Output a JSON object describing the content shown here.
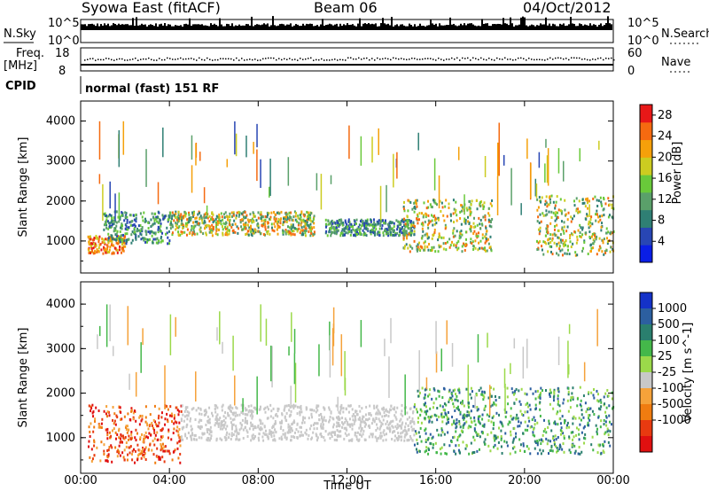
{
  "header": {
    "station": "Syowa East (fitACF)",
    "beam": "Beam 06",
    "date": "04/Oct/2012"
  },
  "side_labels": {
    "nsky": "N.Sky",
    "freq_line1": "Freq.",
    "freq_line2": "[MHz]",
    "cpid": "CPID",
    "nsearch": "N.Search",
    "nave": "Nave"
  },
  "small_axes": {
    "nsky_top": "10^5",
    "nsky_bottom": "10^0",
    "nsearch_top": "10^5",
    "nsearch_bottom": "10^0",
    "freq_top": "18",
    "freq_bottom": "8",
    "nave_top": "60",
    "nave_bottom": "0"
  },
  "cpid_text": "normal (fast) 151 RF",
  "colors": {
    "power_scale": [
      "#0a1ee6",
      "#2846b4",
      "#2f7f74",
      "#5aa06a",
      "#69c93a",
      "#cccc20",
      "#f5a00a",
      "#f56a10",
      "#e81818"
    ],
    "velocity_scale": [
      "#1432c8",
      "#2c5fa0",
      "#2a7f6e",
      "#44b84a",
      "#9bd94a",
      "#c8c8c8",
      "#f5a23a",
      "#f07c10",
      "#e83a10",
      "#e01010"
    ]
  },
  "chart_data": [
    {
      "type": "heatmap",
      "title": "",
      "ylabel": "Slant Range [km]",
      "ylim": [
        200,
        4500
      ],
      "yticks": [
        "1000",
        "2000",
        "3000",
        "4000"
      ],
      "colorbar": {
        "label": "Power [dB]",
        "ticks": [
          "4",
          "8",
          "12",
          "16",
          "20",
          "24",
          "28"
        ],
        "range": [
          0,
          30
        ]
      },
      "regions": [
        {
          "t": [
            0.3,
            2.0
          ],
          "r": [
            650,
            1100
          ],
          "level": "high"
        },
        {
          "t": [
            1.0,
            4.0
          ],
          "r": [
            900,
            1700
          ],
          "level": "mid"
        },
        {
          "t": [
            4.0,
            10.5
          ],
          "r": [
            1100,
            1700
          ],
          "level": "mid-high"
        },
        {
          "t": [
            11.0,
            15.0
          ],
          "r": [
            1100,
            1500
          ],
          "level": "mid"
        },
        {
          "t": [
            14.5,
            18.5
          ],
          "r": [
            700,
            2000
          ],
          "level": "mid-high"
        },
        {
          "t": [
            20.5,
            24.0
          ],
          "r": [
            600,
            2100
          ],
          "level": "mid-high"
        }
      ]
    },
    {
      "type": "heatmap",
      "title": "",
      "xlabel": "Time UT",
      "ylabel": "Slant Range [km]",
      "ylim": [
        200,
        4500
      ],
      "yticks": [
        "1000",
        "2000",
        "3000",
        "4000"
      ],
      "xticks": [
        "00:00",
        "04:00",
        "08:00",
        "12:00",
        "16:00",
        "20:00",
        "00:00"
      ],
      "xlim": [
        0,
        24
      ],
      "colorbar": {
        "label": "Velocity [m s^-1]",
        "ticks": [
          "1000",
          "500",
          "100",
          "25",
          "-25",
          "-100",
          "-500",
          "-1000"
        ],
        "range": [
          -1000,
          1000
        ]
      },
      "regions": [
        {
          "t": [
            0.3,
            4.5
          ],
          "r": [
            400,
            1700
          ],
          "velocity": "negative"
        },
        {
          "t": [
            4.5,
            15.0
          ],
          "r": [
            900,
            1700
          ],
          "velocity": "near-zero"
        },
        {
          "t": [
            15.0,
            24.0
          ],
          "r": [
            600,
            2100
          ],
          "velocity": "positive"
        }
      ]
    }
  ]
}
